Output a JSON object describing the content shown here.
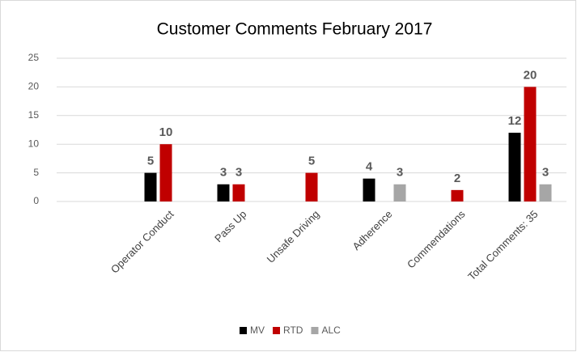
{
  "chart_data": {
    "type": "bar",
    "title": "Customer Comments February 2017",
    "categories": [
      null,
      "Operator Conduct",
      "Pass Up",
      "Unsafe Driving",
      "Adherence",
      "Commendations",
      "Total Comments: 35"
    ],
    "series": [
      {
        "name": "MV",
        "color": "#000000",
        "values": [
          null,
          5,
          3,
          null,
          4,
          null,
          12
        ]
      },
      {
        "name": "RTD",
        "color": "#c00000",
        "values": [
          null,
          10,
          3,
          5,
          null,
          2,
          20
        ]
      },
      {
        "name": "ALC",
        "color": "#a6a6a6",
        "values": [
          null,
          null,
          null,
          null,
          3,
          null,
          3
        ]
      }
    ],
    "ylim": [
      0,
      25
    ],
    "yticks": [
      0,
      5,
      10,
      15,
      20,
      25
    ],
    "grid": true,
    "legend": "bottom"
  }
}
